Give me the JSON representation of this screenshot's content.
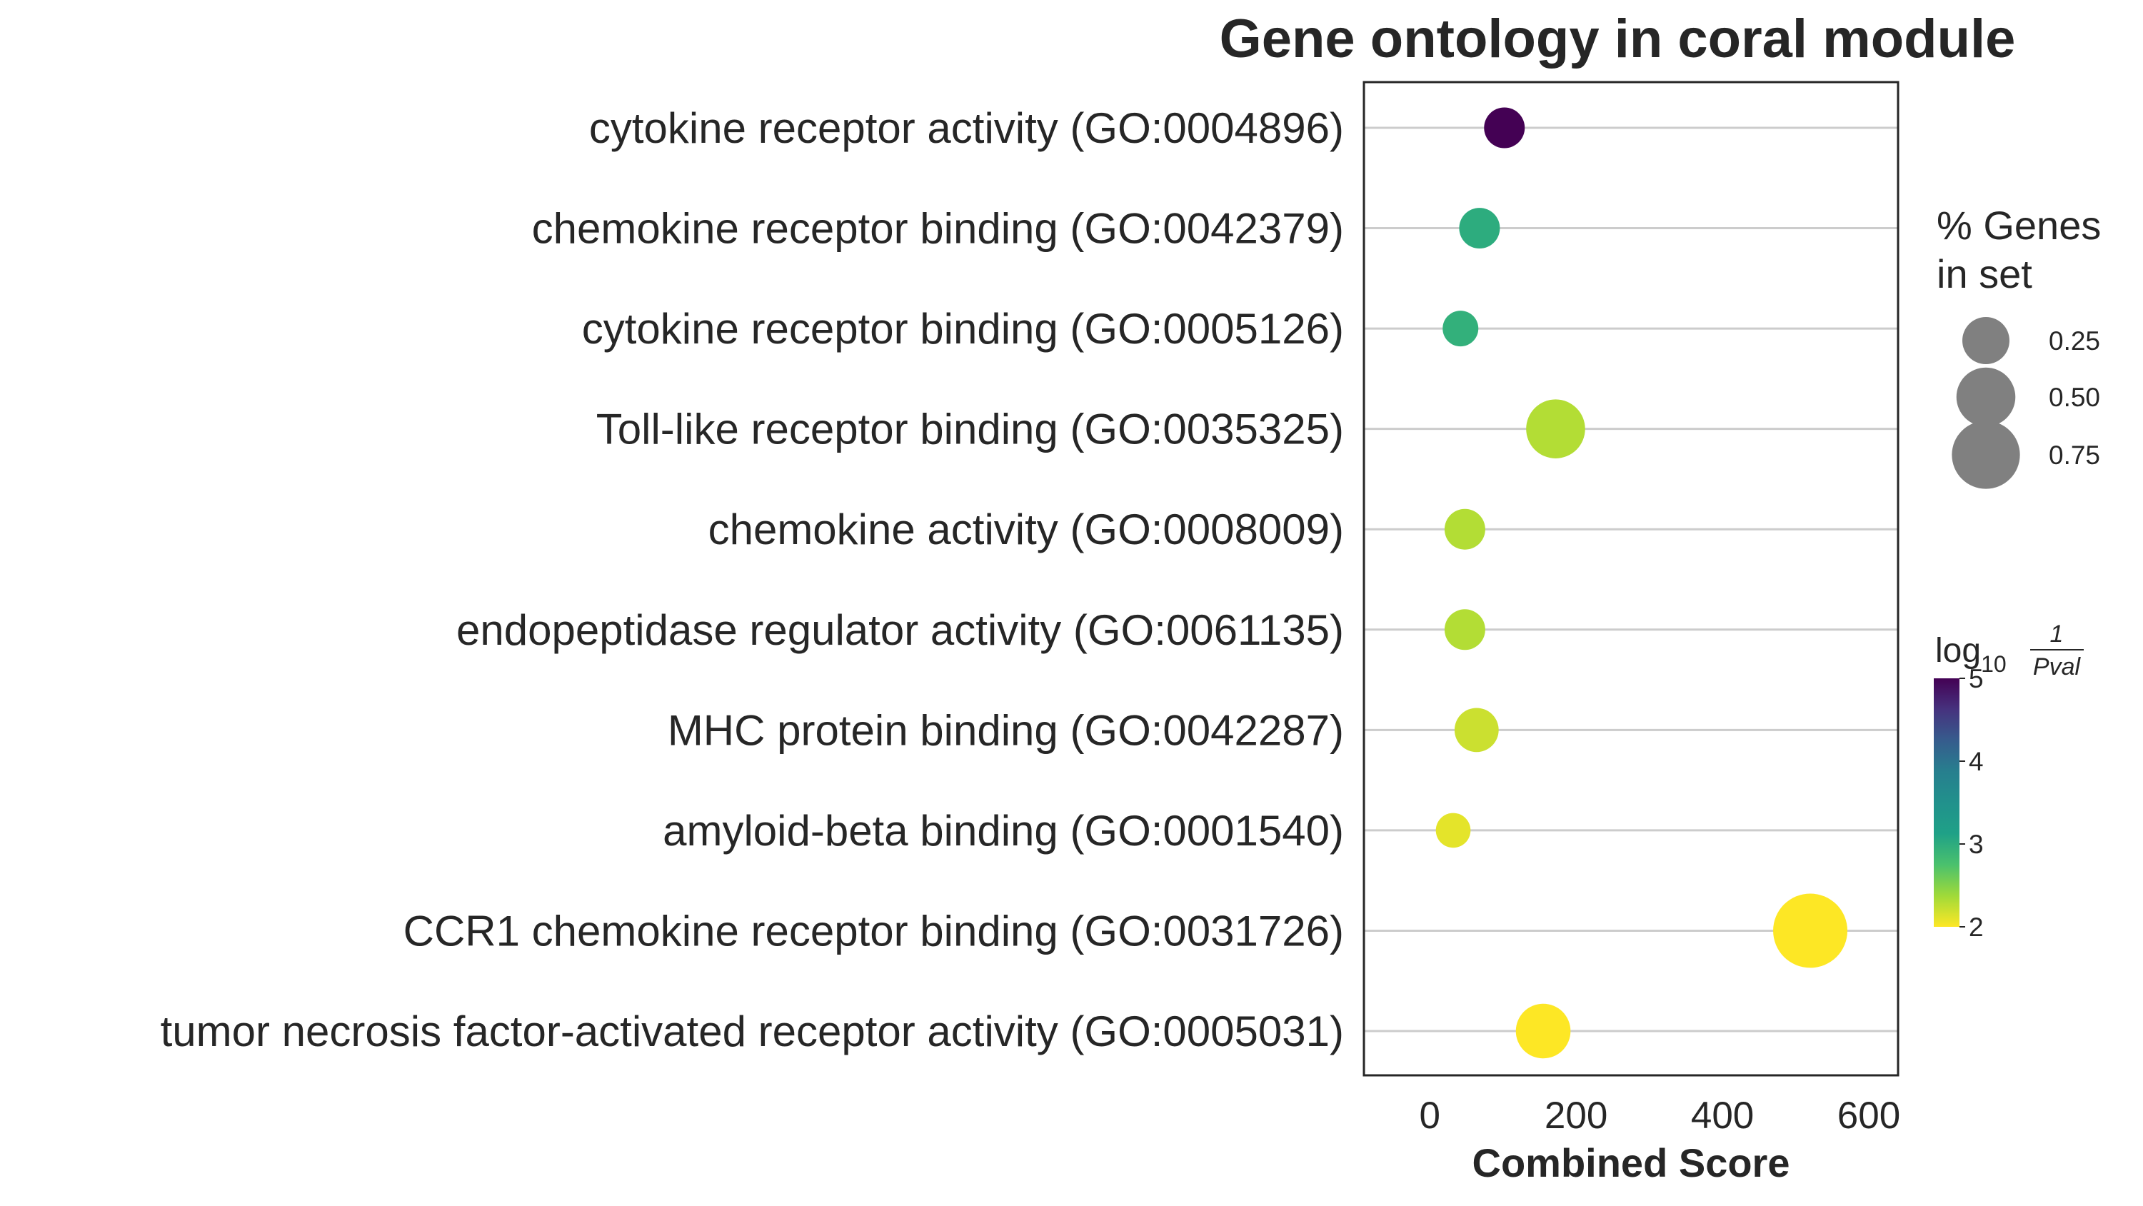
{
  "chart_data": {
    "type": "scatter",
    "title": "Gene ontology in coral module",
    "xlabel": "Combined Score",
    "ylabel": "",
    "xlim": [
      -90,
      640
    ],
    "xticks": [
      "0",
      "200",
      "400",
      "600"
    ],
    "grid": "horizontal",
    "categories": [
      "cytokine receptor activity (GO:0004896)",
      "chemokine receptor binding (GO:0042379)",
      "cytokine receptor binding (GO:0005126)",
      "Toll-like receptor binding (GO:0035325)",
      "chemokine activity (GO:0008009)",
      "endopeptidase regulator activity (GO:0061135)",
      "MHC protein binding (GO:0042287)",
      "amyloid-beta binding (GO:0001540)",
      "CCR1 chemokine receptor binding (GO:0031726)",
      "tumor necrosis factor-activated receptor activity (GO:0005031)"
    ],
    "combined_score": [
      102,
      68,
      42,
      172,
      48,
      48,
      64,
      32,
      520,
      155
    ],
    "percent_genes_in_set": [
      0.15,
      0.15,
      0.09,
      0.5,
      0.15,
      0.15,
      0.2,
      0.08,
      0.95,
      0.4
    ],
    "neg_log10_pval": [
      5.0,
      3.0,
      2.95,
      2.3,
      2.3,
      2.3,
      2.2,
      2.1,
      2.0,
      2.0
    ],
    "size_legend": {
      "title_line1": "% Genes",
      "title_line2": "in set",
      "levels": [
        0.25,
        0.5,
        0.75
      ],
      "labels": [
        "0.25",
        "0.50",
        "0.75"
      ],
      "color": "#808080"
    },
    "colorbar": {
      "title_prefix": "log",
      "title_sub": "10",
      "frac_num": "1",
      "frac_den": "Pval",
      "range": [
        2,
        5
      ],
      "ticks": [
        "2",
        "3",
        "4",
        "5"
      ],
      "colormap": "viridis"
    }
  }
}
